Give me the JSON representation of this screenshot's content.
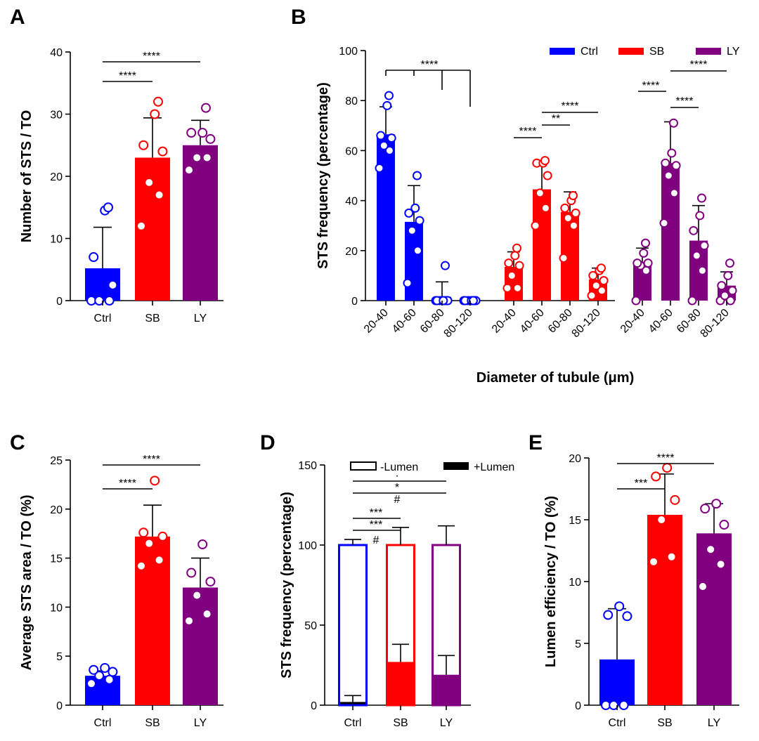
{
  "colors": {
    "Ctrl": "#0000ff",
    "SB": "#ff0000",
    "LY": "#800080",
    "axis": "#000000"
  },
  "chart_data": [
    {
      "id": "A",
      "type": "bar",
      "panel_label": "A",
      "ylabel": "Number of STS / TO",
      "xlabel": "",
      "categories": [
        "Ctrl",
        "SB",
        "LY"
      ],
      "values": [
        5.2,
        23.0,
        25.0
      ],
      "errors": [
        6.6,
        6.4,
        4.0
      ],
      "points": [
        [
          0,
          0,
          0,
          2.5,
          7,
          14.5,
          15
        ],
        [
          12,
          17,
          19,
          24,
          25,
          30,
          32
        ],
        [
          21,
          23,
          23,
          26,
          27,
          27,
          31
        ]
      ],
      "ylim": [
        0,
        40
      ],
      "yticks": [
        0,
        10,
        20,
        30,
        40
      ],
      "yticklabels": [
        "0",
        "10",
        "20",
        "30",
        "40"
      ],
      "significance": [
        {
          "from": 0,
          "to": 1,
          "label": "****"
        },
        {
          "from": 0,
          "to": 2,
          "label": "****"
        }
      ]
    },
    {
      "id": "B",
      "type": "bar",
      "panel_label": "B",
      "ylabel": "STS frequency (percentage)",
      "xlabel": "Diameter of tubule (μm)",
      "categories": [
        "20-40",
        "40-60",
        "60-80",
        "80-120"
      ],
      "legend": [
        "Ctrl",
        "SB",
        "LY"
      ],
      "series": [
        {
          "name": "Ctrl",
          "values": [
            66.5,
            31.5,
            1.5,
            0.3
          ],
          "errors": [
            11,
            14.5,
            6,
            0
          ],
          "points": [
            [
              53,
              60,
              62,
              65,
              66,
              78,
              82
            ],
            [
              7,
              20,
              28,
              32,
              35,
              37,
              50
            ],
            [
              0,
              0,
              0,
              0,
              0,
              0,
              14
            ],
            [
              0,
              0,
              0,
              0,
              0,
              0,
              0
            ]
          ]
        },
        {
          "name": "SB",
          "values": [
            13.5,
            44.5,
            35.5,
            8.5
          ],
          "errors": [
            6,
            10.5,
            8,
            4.5
          ],
          "points": [
            [
              5,
              5,
              10,
              14,
              15,
              18,
              21
            ],
            [
              30,
              37,
              43,
              50,
              55,
              55,
              56
            ],
            [
              17,
              30,
              33,
              35,
              37,
              40,
              42
            ],
            [
              2,
              4,
              6,
              8,
              10,
              12,
              13
            ]
          ]
        },
        {
          "name": "LY",
          "values": [
            15.5,
            55.0,
            24.0,
            6.0
          ],
          "errors": [
            5.5,
            16.5,
            14,
            5.5
          ],
          "points": [
            [
              0,
              12,
              14,
              15,
              15,
              19,
              23
            ],
            [
              31,
              43,
              50,
              54,
              55,
              59,
              71
            ],
            [
              0,
              12,
              18,
              22,
              28,
              34,
              41
            ],
            [
              0,
              0,
              2,
              4,
              6,
              10,
              15
            ]
          ]
        }
      ],
      "ylim": [
        0,
        100
      ],
      "yticks": [
        0,
        20,
        40,
        60,
        80,
        100
      ],
      "yticklabels": [
        "0",
        "20",
        "40",
        "60",
        "80",
        "100"
      ],
      "significance": [
        {
          "label": "****"
        },
        {
          "label": "****"
        },
        {
          "label": "**"
        },
        {
          "label": "****"
        },
        {
          "label": "****"
        },
        {
          "label": "****"
        },
        {
          "label": "****"
        }
      ]
    },
    {
      "id": "C",
      "type": "bar",
      "panel_label": "C",
      "ylabel": "Average STS area / TO (%)",
      "xlabel": "",
      "categories": [
        "Ctrl",
        "SB",
        "LY"
      ],
      "values": [
        3.0,
        17.2,
        12.0
      ],
      "errors": [
        0.5,
        3.2,
        3.0
      ],
      "points": [
        [
          2.2,
          2.6,
          3.0,
          3.4,
          3.6,
          3.8
        ],
        [
          14.2,
          14.8,
          16.5,
          17.2,
          17.6,
          22.9
        ],
        [
          8.6,
          9.3,
          11.2,
          12.6,
          13.5,
          16.4
        ]
      ],
      "ylim": [
        0,
        25
      ],
      "yticks": [
        0,
        5,
        10,
        15,
        20,
        25
      ],
      "yticklabels": [
        "0",
        "5",
        "10",
        "15",
        "20",
        "25"
      ],
      "significance": [
        {
          "from": 0,
          "to": 1,
          "label": "****"
        },
        {
          "from": 0,
          "to": 2,
          "label": "****"
        }
      ]
    },
    {
      "id": "D",
      "type": "bar",
      "stacked": true,
      "panel_label": "D",
      "ylabel": "STS frequency (percentage)",
      "xlabel": "",
      "categories": [
        "Ctrl",
        "SB",
        "LY"
      ],
      "legend": [
        "-Lumen",
        "+Lumen"
      ],
      "totals": [
        100,
        100,
        100
      ],
      "total_errors": [
        3.5,
        11,
        12
      ],
      "lumen_positive": [
        2,
        27,
        19
      ],
      "lumen_positive_errors": [
        4,
        11,
        12
      ],
      "ylim": [
        0,
        150
      ],
      "yticks": [
        0,
        50,
        100,
        150
      ],
      "yticklabels": [
        "0",
        "50",
        "100",
        "150"
      ],
      "significance": [
        {
          "label": "***"
        },
        {
          "label": "#"
        },
        {
          "label": "***"
        },
        {
          "label": "#"
        },
        {
          "label": "*"
        },
        {
          "label": "·"
        }
      ]
    },
    {
      "id": "E",
      "type": "bar",
      "panel_label": "E",
      "ylabel": "Lumen efficiency / TO (%)",
      "xlabel": "",
      "categories": [
        "Ctrl",
        "SB",
        "LY"
      ],
      "values": [
        3.7,
        15.4,
        13.9
      ],
      "errors": [
        4.1,
        3.3,
        2.4
      ],
      "points": [
        [
          0,
          0,
          0,
          7.2,
          7.3,
          8.0
        ],
        [
          11.6,
          12.0,
          15.0,
          16.6,
          18.5,
          19.2
        ],
        [
          9.6,
          11.4,
          12.6,
          14.6,
          15.9,
          16.3
        ]
      ],
      "ylim": [
        0,
        20
      ],
      "yticks": [
        0,
        5,
        10,
        15,
        20
      ],
      "yticklabels": [
        "0",
        "5",
        "10",
        "15",
        "20"
      ],
      "significance": [
        {
          "from": 0,
          "to": 1,
          "label": "***"
        },
        {
          "from": 0,
          "to": 2,
          "label": "****"
        }
      ]
    }
  ]
}
